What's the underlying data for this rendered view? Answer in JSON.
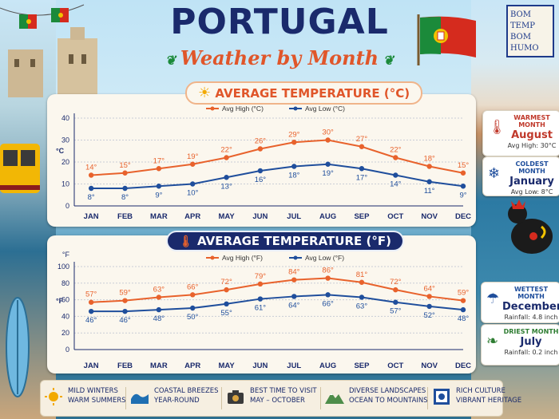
{
  "header": {
    "title": "PORTUGAL",
    "subtitle": "Weather by Month",
    "tile_lines": [
      "BOM TEMP",
      "BOM HUMO"
    ]
  },
  "chart_data": [
    {
      "type": "line",
      "title": "AVERAGE TEMPERATURE (°C)",
      "ylabel": "°C",
      "ylim": [
        0,
        40
      ],
      "yticks": [
        0,
        10,
        20,
        30,
        40
      ],
      "categories": [
        "JAN",
        "FEB",
        "MAR",
        "APR",
        "MAY",
        "JUN",
        "JUL",
        "AUG",
        "SEP",
        "OCT",
        "NOV",
        "DEC"
      ],
      "series": [
        {
          "name": "Avg High (°C)",
          "color": "#e8622c",
          "values": [
            14,
            15,
            17,
            19,
            22,
            26,
            29,
            30,
            27,
            22,
            18,
            15
          ]
        },
        {
          "name": "Avg Low (°C)",
          "color": "#1f4e9c",
          "values": [
            8,
            8,
            9,
            10,
            13,
            16,
            18,
            19,
            17,
            14,
            11,
            9
          ]
        }
      ],
      "data_label_suffix": "°",
      "grid": true,
      "legend": "top-center"
    },
    {
      "type": "line",
      "title": "AVERAGE TEMPERATURE (°F)",
      "ylabel": "°F",
      "ylim": [
        0,
        100
      ],
      "yticks": [
        0,
        20,
        40,
        60,
        80,
        100
      ],
      "unit_tick": "°F",
      "categories": [
        "JAN",
        "FEB",
        "MAR",
        "APR",
        "MAY",
        "JUN",
        "JUL",
        "AUG",
        "SEP",
        "OCT",
        "NOV",
        "DEC"
      ],
      "series": [
        {
          "name": "Avg High (°F)",
          "color": "#e8622c",
          "values": [
            57,
            59,
            63,
            66,
            72,
            79,
            84,
            86,
            81,
            72,
            64,
            59
          ]
        },
        {
          "name": "Avg Low (°F)",
          "color": "#1f4e9c",
          "values": [
            46,
            46,
            48,
            50,
            55,
            61,
            64,
            66,
            63,
            57,
            52,
            48
          ]
        }
      ],
      "data_label_suffix": "°",
      "grid": true,
      "legend": "top-center"
    }
  ],
  "sidebar": {
    "warmest": {
      "head": "WARMEST MONTH",
      "value": "August",
      "sub": "Avg High: 30°C",
      "icon": "thermometer-icon",
      "color": "#c0392b"
    },
    "coldest": {
      "head": "COLDEST MONTH",
      "value": "January",
      "sub": "Avg Low: 8°C",
      "icon": "snowflake-icon",
      "color": "#1f4e9c"
    },
    "wettest": {
      "head": "WETTEST MONTH",
      "value": "December",
      "sub": "Rainfall: 4.8 inch",
      "icon": "umbrella-icon",
      "color": "#1f4e9c"
    },
    "driest": {
      "head": "DRIEST MONTH",
      "value": "July",
      "sub": "Rainfall: 0.2 inch",
      "icon": "leaf-icon",
      "color": "#2e7d32"
    }
  },
  "footer": {
    "features": [
      {
        "line1": "MILD WINTERS",
        "line2": "WARM SUMMERS",
        "icon": "sun-icon"
      },
      {
        "line1": "COASTAL BREEZES",
        "line2": "YEAR-ROUND",
        "icon": "wave-icon"
      },
      {
        "line1": "BEST TIME TO VISIT",
        "line2": "MAY – OCTOBER",
        "icon": "camera-icon"
      },
      {
        "line1": "DIVERSE LANDSCAPES",
        "line2": "OCEAN TO MOUNTAINS",
        "icon": "mountain-icon"
      },
      {
        "line1": "RICH CULTURE",
        "line2": "VIBRANT HERITAGE",
        "icon": "azulejo-tile-icon"
      }
    ]
  },
  "colors": {
    "navy": "#1a2a6c",
    "orange": "#e0562a",
    "high_line": "#e8622c",
    "low_line": "#1f4e9c"
  }
}
